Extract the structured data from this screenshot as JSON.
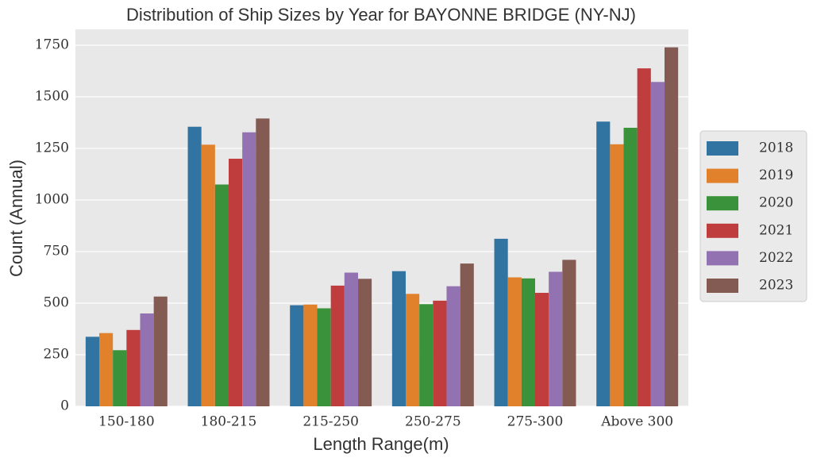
{
  "chart_data": {
    "type": "bar",
    "title": "Distribution of Ship Sizes by Year for BAYONNE BRIDGE (NY-NJ)",
    "x_label": "Length Range(m)",
    "y_label": "Count (Annual)",
    "categories": [
      "150-180",
      "180-215",
      "215-250",
      "250-275",
      "275-300",
      "Above 300"
    ],
    "series": [
      {
        "name": "2018",
        "color": "#3274a1",
        "values": [
          337,
          1355,
          490,
          655,
          812,
          1380
        ]
      },
      {
        "name": "2019",
        "color": "#e1812c",
        "values": [
          355,
          1268,
          493,
          545,
          625,
          1270
        ]
      },
      {
        "name": "2020",
        "color": "#3a923a",
        "values": [
          272,
          1075,
          475,
          495,
          620,
          1350
        ]
      },
      {
        "name": "2021",
        "color": "#c03d3e",
        "values": [
          370,
          1200,
          585,
          512,
          550,
          1638
        ]
      },
      {
        "name": "2022",
        "color": "#9372b2",
        "values": [
          450,
          1328,
          648,
          582,
          652,
          1572
        ]
      },
      {
        "name": "2023",
        "color": "#845b53",
        "values": [
          532,
          1395,
          618,
          692,
          710,
          1740
        ]
      }
    ],
    "ylim": [
      0,
      1827
    ],
    "yticks": [
      0,
      250,
      500,
      750,
      1000,
      1250,
      1500,
      1750
    ],
    "grid": true,
    "legend": "right"
  }
}
